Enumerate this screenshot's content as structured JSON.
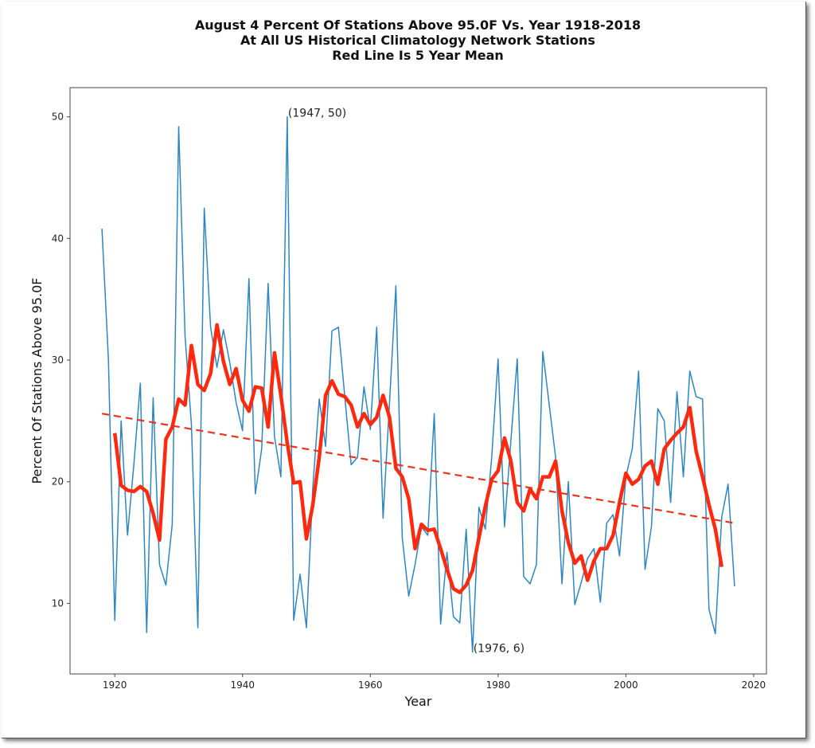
{
  "chart_data": {
    "type": "line",
    "title": [
      "August 4 Percent Of Stations Above 95.0F Vs. Year 1918-2018",
      "At All US Historical Climatology Network Stations",
      "Red Line Is 5 Year Mean"
    ],
    "xlabel": "Year",
    "ylabel": "Percent Of Stations Above 95.0F",
    "xlim": [
      1913,
      2022
    ],
    "ylim": [
      4.2,
      52.4
    ],
    "xticks": [
      1920,
      1940,
      1960,
      1980,
      2000,
      2020
    ],
    "yticks": [
      10,
      20,
      30,
      40,
      50
    ],
    "grid": false,
    "series": [
      {
        "name": "Percent of stations above 95.0F",
        "color": "#2e86c1",
        "x": [
          1918,
          1919,
          1920,
          1921,
          1922,
          1923,
          1924,
          1925,
          1926,
          1927,
          1928,
          1929,
          1930,
          1931,
          1932,
          1933,
          1934,
          1935,
          1936,
          1937,
          1938,
          1939,
          1940,
          1941,
          1942,
          1943,
          1944,
          1945,
          1946,
          1947,
          1948,
          1949,
          1950,
          1951,
          1952,
          1953,
          1954,
          1955,
          1956,
          1957,
          1958,
          1959,
          1960,
          1961,
          1962,
          1963,
          1964,
          1965,
          1966,
          1967,
          1968,
          1969,
          1970,
          1971,
          1972,
          1973,
          1974,
          1975,
          1976,
          1977,
          1978,
          1979,
          1980,
          1981,
          1982,
          1983,
          1984,
          1985,
          1986,
          1987,
          1988,
          1989,
          1990,
          1991,
          1992,
          1993,
          1994,
          1995,
          1996,
          1997,
          1998,
          1999,
          2000,
          2001,
          2002,
          2003,
          2004,
          2005,
          2006,
          2007,
          2008,
          2009,
          2010,
          2011,
          2012,
          2013,
          2014,
          2015,
          2016,
          2017
        ],
        "values": [
          40.8,
          30.1,
          8.6,
          25.0,
          15.6,
          21.5,
          28.1,
          7.6,
          26.9,
          13.2,
          11.5,
          16.5,
          49.2,
          32.0,
          24.7,
          8.0,
          42.5,
          32.7,
          29.4,
          32.5,
          29.8,
          26.5,
          24.2,
          36.7,
          19.0,
          22.7,
          36.3,
          23.7,
          20.4,
          50.0,
          8.6,
          12.4,
          8.0,
          19.5,
          26.8,
          22.9,
          32.4,
          32.7,
          27.0,
          21.4,
          22.0,
          27.8,
          24.3,
          32.7,
          17.0,
          26.5,
          36.1,
          15.4,
          10.6,
          13.2,
          16.3,
          15.6,
          25.6,
          8.3,
          14.2,
          8.9,
          8.4,
          16.1,
          6.0,
          17.9,
          16.1,
          22.0,
          30.1,
          16.3,
          23.4,
          30.1,
          12.2,
          11.6,
          13.2,
          30.7,
          26.3,
          22.0,
          11.6,
          20.0,
          9.9,
          11.7,
          13.7,
          14.5,
          10.1,
          16.6,
          17.3,
          13.9,
          20.4,
          22.7,
          29.1,
          12.8,
          16.3,
          26.0,
          25.0,
          18.3,
          27.4,
          20.4,
          29.1,
          27.0,
          26.8,
          9.5,
          7.5,
          17.1,
          19.8,
          11.4
        ]
      },
      {
        "name": "5 Year Mean",
        "color": "#ff2a0e",
        "x": [
          1920,
          1921,
          1922,
          1923,
          1924,
          1925,
          1926,
          1927,
          1928,
          1929,
          1930,
          1931,
          1932,
          1933,
          1934,
          1935,
          1936,
          1937,
          1938,
          1939,
          1940,
          1941,
          1942,
          1943,
          1944,
          1945,
          1946,
          1947,
          1948,
          1949,
          1950,
          1951,
          1952,
          1953,
          1954,
          1955,
          1956,
          1957,
          1958,
          1959,
          1960,
          1961,
          1962,
          1963,
          1964,
          1965,
          1966,
          1967,
          1968,
          1969,
          1970,
          1971,
          1972,
          1973,
          1974,
          1975,
          1976,
          1977,
          1978,
          1979,
          1980,
          1981,
          1982,
          1983,
          1984,
          1985,
          1986,
          1987,
          1988,
          1989,
          1990,
          1991,
          1992,
          1993,
          1994,
          1995,
          1996,
          1997,
          1998,
          1999,
          2000,
          2001,
          2002,
          2003,
          2004,
          2005,
          2006,
          2007,
          2008,
          2009,
          2010,
          2011,
          2012,
          2013,
          2014,
          2015
        ],
        "values": [
          24.0,
          19.7,
          19.3,
          19.2,
          19.6,
          19.2,
          17.4,
          15.2,
          23.5,
          24.5,
          26.8,
          26.3,
          31.2,
          28.0,
          27.5,
          28.9,
          32.9,
          29.9,
          28.0,
          29.3,
          26.7,
          25.8,
          27.8,
          27.7,
          24.5,
          30.6,
          27.1,
          23.2,
          19.9,
          20.0,
          15.3,
          18.1,
          22.0,
          27.1,
          28.3,
          27.2,
          27.0,
          26.3,
          24.5,
          25.6,
          24.7,
          25.3,
          27.1,
          25.3,
          21.1,
          20.4,
          18.6,
          14.5,
          16.5,
          16.0,
          16.1,
          14.5,
          12.8,
          11.2,
          10.9,
          11.5,
          12.7,
          15.4,
          18.0,
          20.2,
          20.9,
          23.6,
          21.7,
          18.3,
          17.6,
          19.4,
          18.6,
          20.4,
          20.4,
          21.7,
          17.6,
          15.0,
          13.3,
          13.9,
          11.9,
          13.5,
          14.5,
          14.5,
          15.6,
          18.3,
          20.7,
          19.8,
          20.2,
          21.3,
          21.7,
          19.8,
          22.7,
          23.4,
          24.0,
          24.5,
          26.1,
          22.5,
          20.4,
          18.1,
          16.1,
          13.0
        ]
      },
      {
        "name": "Linear trend",
        "color": "#e8351f",
        "style": "dashed",
        "x": [
          1918,
          2017
        ],
        "values": [
          25.6,
          16.6
        ]
      }
    ],
    "annotations": [
      {
        "text": "(1947, 50)",
        "x": 1947,
        "y": 50
      },
      {
        "text": "(1976, 6)",
        "x": 1976,
        "y": 6
      }
    ]
  }
}
